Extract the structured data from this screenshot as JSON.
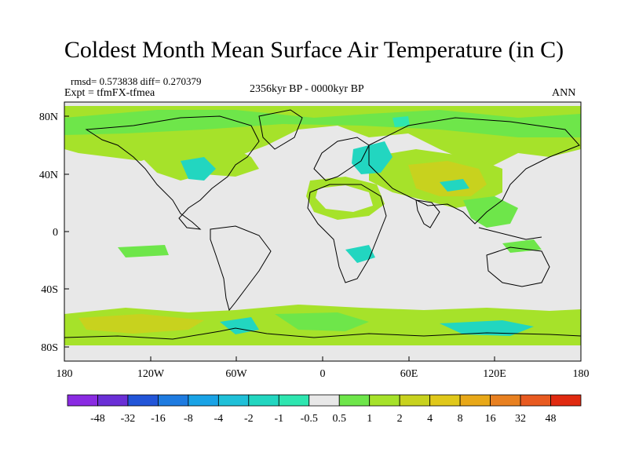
{
  "title": "Coldest Month Mean Surface Air Temperature (in C)",
  "stats": "rmsd= 0.573838 diff= 0.270379",
  "experiment": "Expt = tfmFX-tfmea",
  "period": "2356kyr BP - 0000kyr BP",
  "season": "ANN",
  "lat_labels": [
    "80N",
    "40N",
    "0",
    "40S",
    "80S"
  ],
  "lon_labels": [
    "180",
    "120W",
    "60W",
    "0",
    "60E",
    "120E",
    "180"
  ],
  "colorbar": {
    "colors": [
      "#8a2be2",
      "#6a2fd6",
      "#2255d8",
      "#1e7be0",
      "#19a3e6",
      "#1fc0d8",
      "#22d6c0",
      "#2ee6b0",
      "#e8e8e8",
      "#6ee64a",
      "#a6e22a",
      "#c8d21e",
      "#e0c81a",
      "#e8a818",
      "#e88020",
      "#e85a20",
      "#e02a10"
    ],
    "labels": [
      "-48",
      "-32",
      "-16",
      "-8",
      "-4",
      "-2",
      "-1",
      "-0.5",
      "0.5",
      "1",
      "2",
      "4",
      "8",
      "16",
      "32",
      "48"
    ]
  },
  "map": {
    "background": "#e8e8e8",
    "warm_colors": [
      "#a6e22a",
      "#c8d21e",
      "#6ee64a"
    ],
    "cool_colors": [
      "#22d6c0",
      "#2ee6b0"
    ]
  }
}
